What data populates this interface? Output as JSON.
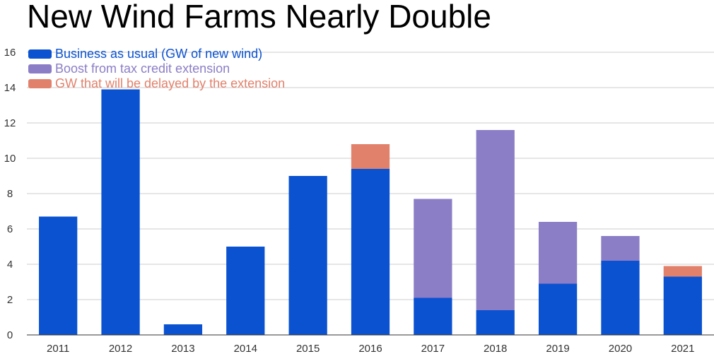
{
  "chart_data": {
    "type": "bar",
    "stacked": true,
    "title": "New Wind Farms Nearly Double",
    "xlabel": "",
    "ylabel": "",
    "ylim": [
      0,
      16
    ],
    "yticks": [
      0,
      2,
      4,
      6,
      8,
      10,
      12,
      14,
      16
    ],
    "grid": true,
    "legend_position": "top-left",
    "categories": [
      "2011",
      "2012",
      "2013",
      "2014",
      "2015",
      "2016",
      "2017",
      "2018",
      "2019",
      "2020",
      "2021"
    ],
    "series": [
      {
        "name": "Business as usual (GW of new wind)",
        "color": "#0b52d0",
        "values": [
          6.7,
          13.9,
          0.6,
          5.0,
          9.0,
          9.4,
          2.1,
          1.4,
          2.9,
          4.2,
          3.3
        ]
      },
      {
        "name": "Boost from tax credit extension",
        "color": "#8c7ec6",
        "values": [
          0,
          0,
          0,
          0,
          0,
          0,
          5.6,
          10.2,
          3.5,
          1.4,
          0
        ]
      },
      {
        "name": "GW that will be delayed by the extension",
        "color": "#e2816b",
        "values": [
          0,
          0,
          0,
          0,
          0,
          1.4,
          0,
          0,
          0,
          0,
          0.6
        ]
      }
    ]
  }
}
